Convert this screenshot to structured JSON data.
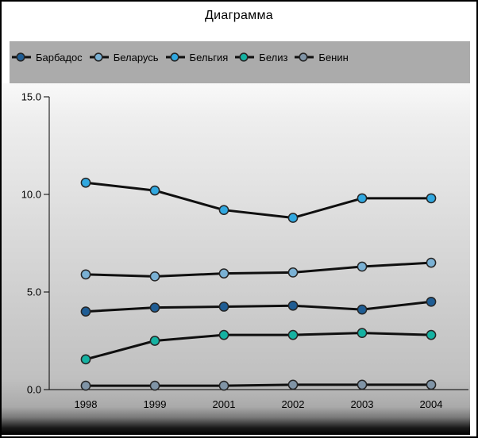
{
  "window": {
    "title": "Диаграмма"
  },
  "chart_data": {
    "type": "line",
    "title": "Диаграмма",
    "categories": [
      "1998",
      "1999",
      "2001",
      "2002",
      "2003",
      "2004"
    ],
    "series": [
      {
        "name": "Барбадос",
        "color": "#1f5d94",
        "values": [
          4.0,
          4.2,
          4.25,
          4.3,
          4.1,
          4.5
        ]
      },
      {
        "name": "Беларусь",
        "color": "#7ab1d4",
        "values": [
          5.9,
          5.8,
          5.95,
          6.0,
          6.3,
          6.5
        ]
      },
      {
        "name": "Бельгия",
        "color": "#31a8e0",
        "values": [
          10.6,
          10.2,
          9.2,
          8.8,
          9.8,
          9.8
        ]
      },
      {
        "name": "Белиз",
        "color": "#15b2a2",
        "values": [
          1.55,
          2.5,
          2.8,
          2.8,
          2.9,
          2.8
        ]
      },
      {
        "name": "Бенин",
        "color": "#8094a6",
        "values": [
          0.2,
          0.2,
          0.2,
          0.25,
          0.25,
          0.25
        ]
      }
    ],
    "ylim": [
      0,
      15
    ],
    "yticks": [
      {
        "value": 0,
        "label": "0.0"
      },
      {
        "value": 5,
        "label": "5.0"
      },
      {
        "value": 10,
        "label": "10.0"
      },
      {
        "value": 15,
        "label": "15.0"
      }
    ],
    "legend_position": "top",
    "grid": false,
    "axis_color": "#000000",
    "line_color": "#0f0f0f",
    "marker_outline": "#262626"
  }
}
